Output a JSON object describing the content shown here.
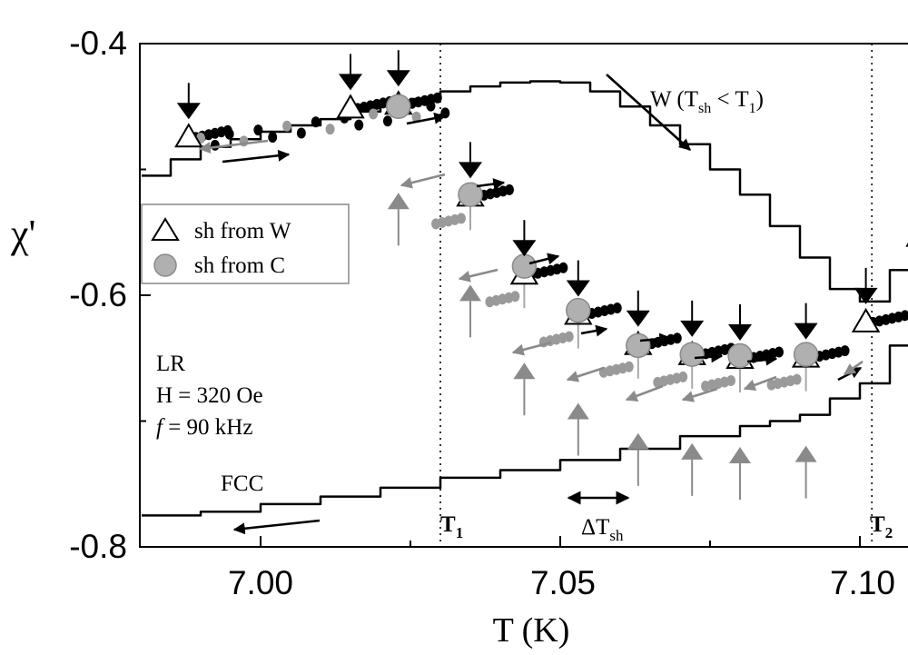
{
  "chart_data": {
    "type": "scatter",
    "title": "",
    "xlabel": "T (K)",
    "ylabel": "χ'",
    "xlim": [
      6.98,
      7.11
    ],
    "ylim": [
      -0.8,
      -0.4
    ],
    "x_ticks": [
      "7.00",
      "7.05",
      "7.10"
    ],
    "y_ticks": [
      "-0.4",
      "-0.6",
      "-0.8"
    ],
    "grid": false,
    "legend": {
      "placement": "left",
      "entries": [
        "sh from W",
        "sh from C"
      ],
      "marker_colors": [
        "#ffffff",
        "#b0b0b0"
      ]
    },
    "annotations": {
      "lr_block": [
        "LR",
        "H = 320 Oe",
        "= 90 kHz"
      ],
      "lr_f_symbol": "f",
      "fcc_label": "FCC",
      "w_label": "W (T",
      "w_sub": "sh",
      "w_rest": " < T",
      "w_sub2": "1",
      "w_close": ")",
      "t1_label": "T",
      "t1_sub": "1",
      "t2_label": "T",
      "t2_sub": "2",
      "dtsh_label": "ΔT",
      "dtsh_sub": "sh"
    },
    "reference_lines_T": [
      7.03,
      7.102
    ],
    "curves": {
      "W": [
        [
          6.98,
          -0.505
        ],
        [
          6.985,
          -0.492
        ],
        [
          6.99,
          -0.482
        ],
        [
          6.995,
          -0.476
        ],
        [
          7.0,
          -0.47
        ],
        [
          7.005,
          -0.465
        ],
        [
          7.01,
          -0.46
        ],
        [
          7.015,
          -0.454
        ],
        [
          7.02,
          -0.449
        ],
        [
          7.025,
          -0.444
        ],
        [
          7.03,
          -0.438
        ],
        [
          7.035,
          -0.434
        ],
        [
          7.04,
          -0.431
        ],
        [
          7.045,
          -0.43
        ],
        [
          7.05,
          -0.431
        ],
        [
          7.055,
          -0.438
        ],
        [
          7.06,
          -0.45
        ],
        [
          7.065,
          -0.465
        ],
        [
          7.07,
          -0.48
        ],
        [
          7.075,
          -0.5
        ],
        [
          7.08,
          -0.52
        ],
        [
          7.085,
          -0.545
        ],
        [
          7.09,
          -0.57
        ],
        [
          7.095,
          -0.595
        ],
        [
          7.1,
          -0.605
        ],
        [
          7.105,
          -0.58
        ],
        [
          7.11,
          -0.52
        ]
      ],
      "FCC": [
        [
          6.98,
          -0.775
        ],
        [
          6.99,
          -0.772
        ],
        [
          7.0,
          -0.766
        ],
        [
          7.01,
          -0.76
        ],
        [
          7.02,
          -0.753
        ],
        [
          7.03,
          -0.745
        ],
        [
          7.04,
          -0.739
        ],
        [
          7.05,
          -0.731
        ],
        [
          7.06,
          -0.722
        ],
        [
          7.07,
          -0.712
        ],
        [
          7.08,
          -0.704
        ],
        [
          7.085,
          -0.7
        ],
        [
          7.09,
          -0.695
        ],
        [
          7.095,
          -0.682
        ],
        [
          7.1,
          -0.67
        ],
        [
          7.105,
          -0.64
        ],
        [
          7.11,
          -0.6
        ]
      ]
    },
    "series": [
      {
        "name": "sh from W",
        "x": [
          6.988,
          7.015,
          7.023,
          7.035,
          7.044,
          7.053,
          7.063,
          7.072,
          7.08,
          7.091,
          7.101,
          7.11
        ],
        "y": [
          -0.476,
          -0.453,
          -0.45,
          -0.523,
          -0.585,
          -0.617,
          -0.641,
          -0.649,
          -0.652,
          -0.651,
          -0.623,
          -0.555
        ]
      },
      {
        "name": "sh from C",
        "x": [
          7.023,
          7.035,
          7.044,
          7.053,
          7.063,
          7.072,
          7.08,
          7.091
        ],
        "y": [
          -0.45,
          -0.52,
          -0.577,
          -0.612,
          -0.64,
          -0.647,
          -0.648,
          -0.647
        ]
      }
    ],
    "shift_temperatures": [
      6.988,
      7.015,
      7.023,
      7.035,
      7.044,
      7.053,
      7.063,
      7.072,
      7.08,
      7.091,
      7.101
    ]
  }
}
